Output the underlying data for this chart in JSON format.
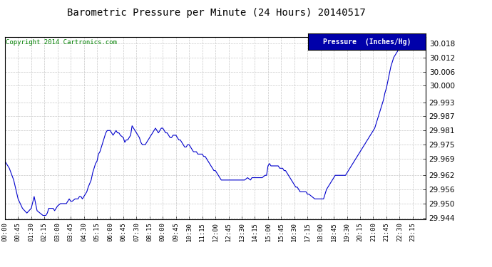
{
  "title": "Barometric Pressure per Minute (24 Hours) 20140517",
  "copyright": "Copyright 2014 Cartronics.com",
  "legend_label": "Pressure  (Inches/Hg)",
  "line_color": "#0000cc",
  "background_color": "#ffffff",
  "plot_bg_color": "#ffffff",
  "grid_color": "#c8c8c8",
  "ylim": [
    29.9435,
    30.0205
  ],
  "yticks": [
    29.944,
    29.95,
    29.956,
    29.962,
    29.969,
    29.975,
    29.981,
    29.987,
    29.993,
    30.0,
    30.006,
    30.012,
    30.018
  ],
  "xtick_labels": [
    "00:00",
    "00:45",
    "01:30",
    "02:15",
    "03:00",
    "03:45",
    "04:30",
    "05:15",
    "06:00",
    "06:45",
    "07:30",
    "08:15",
    "09:00",
    "09:45",
    "10:30",
    "11:15",
    "12:00",
    "12:45",
    "13:30",
    "14:15",
    "15:00",
    "15:45",
    "16:30",
    "17:15",
    "18:00",
    "18:45",
    "19:30",
    "20:15",
    "21:00",
    "21:45",
    "22:30",
    "23:15"
  ],
  "key_times": [
    0,
    45,
    90,
    135,
    180,
    225,
    270,
    315,
    360,
    405,
    450,
    495,
    540,
    585,
    630,
    675,
    720,
    765,
    810,
    855,
    900,
    945,
    990,
    1035,
    1080,
    1125,
    1170,
    1215,
    1260,
    1305,
    1350,
    1395
  ],
  "pressure_data": [
    [
      0,
      29.968
    ],
    [
      15,
      29.965
    ],
    [
      30,
      29.96
    ],
    [
      45,
      29.952
    ],
    [
      60,
      29.948
    ],
    [
      75,
      29.946
    ],
    [
      90,
      29.948
    ],
    [
      100,
      29.953
    ],
    [
      110,
      29.947
    ],
    [
      120,
      29.946
    ],
    [
      130,
      29.945
    ],
    [
      135,
      29.945
    ],
    [
      140,
      29.945
    ],
    [
      145,
      29.946
    ],
    [
      150,
      29.948
    ],
    [
      155,
      29.948
    ],
    [
      160,
      29.948
    ],
    [
      165,
      29.948
    ],
    [
      170,
      29.947
    ],
    [
      175,
      29.948
    ],
    [
      180,
      29.949
    ],
    [
      190,
      29.95
    ],
    [
      200,
      29.95
    ],
    [
      210,
      29.95
    ],
    [
      215,
      29.951
    ],
    [
      220,
      29.952
    ],
    [
      225,
      29.951
    ],
    [
      230,
      29.951
    ],
    [
      240,
      29.952
    ],
    [
      250,
      29.952
    ],
    [
      255,
      29.953
    ],
    [
      260,
      29.953
    ],
    [
      265,
      29.952
    ],
    [
      270,
      29.953
    ],
    [
      280,
      29.955
    ],
    [
      285,
      29.957
    ],
    [
      295,
      29.96
    ],
    [
      300,
      29.963
    ],
    [
      310,
      29.967
    ],
    [
      315,
      29.968
    ],
    [
      320,
      29.971
    ],
    [
      325,
      29.972
    ],
    [
      330,
      29.974
    ],
    [
      335,
      29.976
    ],
    [
      340,
      29.978
    ],
    [
      345,
      29.98
    ],
    [
      350,
      29.981
    ],
    [
      355,
      29.981
    ],
    [
      360,
      29.981
    ],
    [
      365,
      29.98
    ],
    [
      370,
      29.979
    ],
    [
      375,
      29.98
    ],
    [
      380,
      29.981
    ],
    [
      385,
      29.98
    ],
    [
      390,
      29.98
    ],
    [
      395,
      29.979
    ],
    [
      405,
      29.978
    ],
    [
      410,
      29.976
    ],
    [
      415,
      29.977
    ],
    [
      420,
      29.977
    ],
    [
      425,
      29.978
    ],
    [
      430,
      29.979
    ],
    [
      435,
      29.983
    ],
    [
      440,
      29.982
    ],
    [
      445,
      29.981
    ],
    [
      450,
      29.98
    ],
    [
      455,
      29.979
    ],
    [
      460,
      29.978
    ],
    [
      465,
      29.976
    ],
    [
      470,
      29.975
    ],
    [
      475,
      29.975
    ],
    [
      480,
      29.975
    ],
    [
      485,
      29.976
    ],
    [
      490,
      29.977
    ],
    [
      495,
      29.978
    ],
    [
      500,
      29.979
    ],
    [
      505,
      29.98
    ],
    [
      510,
      29.981
    ],
    [
      515,
      29.982
    ],
    [
      520,
      29.981
    ],
    [
      525,
      29.98
    ],
    [
      530,
      29.981
    ],
    [
      535,
      29.982
    ],
    [
      540,
      29.982
    ],
    [
      545,
      29.981
    ],
    [
      550,
      29.98
    ],
    [
      555,
      29.98
    ],
    [
      560,
      29.979
    ],
    [
      565,
      29.978
    ],
    [
      570,
      29.978
    ],
    [
      575,
      29.979
    ],
    [
      580,
      29.979
    ],
    [
      585,
      29.979
    ],
    [
      590,
      29.978
    ],
    [
      595,
      29.977
    ],
    [
      600,
      29.977
    ],
    [
      605,
      29.976
    ],
    [
      610,
      29.975
    ],
    [
      615,
      29.974
    ],
    [
      620,
      29.974
    ],
    [
      625,
      29.975
    ],
    [
      630,
      29.975
    ],
    [
      635,
      29.974
    ],
    [
      640,
      29.973
    ],
    [
      645,
      29.972
    ],
    [
      650,
      29.972
    ],
    [
      655,
      29.972
    ],
    [
      660,
      29.971
    ],
    [
      665,
      29.971
    ],
    [
      670,
      29.971
    ],
    [
      675,
      29.971
    ],
    [
      680,
      29.97
    ],
    [
      685,
      29.97
    ],
    [
      690,
      29.969
    ],
    [
      695,
      29.968
    ],
    [
      700,
      29.967
    ],
    [
      705,
      29.966
    ],
    [
      710,
      29.965
    ],
    [
      715,
      29.964
    ],
    [
      720,
      29.964
    ],
    [
      725,
      29.963
    ],
    [
      730,
      29.962
    ],
    [
      735,
      29.961
    ],
    [
      740,
      29.96
    ],
    [
      760,
      29.96
    ],
    [
      780,
      29.96
    ],
    [
      800,
      29.96
    ],
    [
      810,
      29.96
    ],
    [
      820,
      29.96
    ],
    [
      830,
      29.961
    ],
    [
      840,
      29.96
    ],
    [
      845,
      29.961
    ],
    [
      850,
      29.961
    ],
    [
      855,
      29.961
    ],
    [
      860,
      29.961
    ],
    [
      870,
      29.961
    ],
    [
      880,
      29.961
    ],
    [
      890,
      29.962
    ],
    [
      895,
      29.962
    ],
    [
      900,
      29.966
    ],
    [
      905,
      29.967
    ],
    [
      910,
      29.966
    ],
    [
      915,
      29.966
    ],
    [
      920,
      29.966
    ],
    [
      925,
      29.966
    ],
    [
      930,
      29.966
    ],
    [
      935,
      29.966
    ],
    [
      940,
      29.965
    ],
    [
      945,
      29.965
    ],
    [
      950,
      29.965
    ],
    [
      955,
      29.964
    ],
    [
      960,
      29.964
    ],
    [
      965,
      29.963
    ],
    [
      970,
      29.962
    ],
    [
      975,
      29.961
    ],
    [
      980,
      29.96
    ],
    [
      985,
      29.959
    ],
    [
      990,
      29.958
    ],
    [
      995,
      29.957
    ],
    [
      1000,
      29.957
    ],
    [
      1005,
      29.956
    ],
    [
      1010,
      29.955
    ],
    [
      1020,
      29.955
    ],
    [
      1030,
      29.955
    ],
    [
      1035,
      29.954
    ],
    [
      1040,
      29.954
    ],
    [
      1050,
      29.953
    ],
    [
      1060,
      29.952
    ],
    [
      1070,
      29.952
    ],
    [
      1080,
      29.952
    ],
    [
      1090,
      29.952
    ],
    [
      1095,
      29.954
    ],
    [
      1100,
      29.956
    ],
    [
      1105,
      29.957
    ],
    [
      1110,
      29.958
    ],
    [
      1115,
      29.959
    ],
    [
      1120,
      29.96
    ],
    [
      1125,
      29.961
    ],
    [
      1130,
      29.962
    ],
    [
      1140,
      29.962
    ],
    [
      1150,
      29.962
    ],
    [
      1160,
      29.962
    ],
    [
      1165,
      29.962
    ],
    [
      1170,
      29.963
    ],
    [
      1175,
      29.964
    ],
    [
      1180,
      29.965
    ],
    [
      1185,
      29.966
    ],
    [
      1190,
      29.967
    ],
    [
      1195,
      29.968
    ],
    [
      1200,
      29.969
    ],
    [
      1210,
      29.971
    ],
    [
      1215,
      29.972
    ],
    [
      1220,
      29.973
    ],
    [
      1230,
      29.975
    ],
    [
      1240,
      29.977
    ],
    [
      1245,
      29.978
    ],
    [
      1250,
      29.979
    ],
    [
      1255,
      29.98
    ],
    [
      1260,
      29.981
    ],
    [
      1265,
      29.982
    ],
    [
      1270,
      29.984
    ],
    [
      1275,
      29.986
    ],
    [
      1280,
      29.988
    ],
    [
      1285,
      29.99
    ],
    [
      1290,
      29.992
    ],
    [
      1295,
      29.994
    ],
    [
      1300,
      29.997
    ],
    [
      1305,
      29.999
    ],
    [
      1310,
      30.002
    ],
    [
      1315,
      30.005
    ],
    [
      1320,
      30.008
    ],
    [
      1325,
      30.01
    ],
    [
      1330,
      30.012
    ],
    [
      1335,
      30.013
    ],
    [
      1340,
      30.014
    ],
    [
      1345,
      30.015
    ],
    [
      1350,
      30.016
    ],
    [
      1355,
      30.017
    ],
    [
      1360,
      30.018
    ],
    [
      1380,
      30.019
    ],
    [
      1395,
      30.02
    ]
  ]
}
